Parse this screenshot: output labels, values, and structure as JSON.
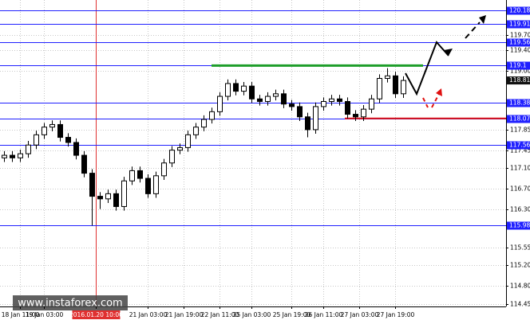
{
  "chart_data": {
    "type": "candlestick",
    "x": [
      0,
      1,
      2,
      3,
      4,
      5,
      6,
      7,
      8,
      9,
      10,
      11,
      12,
      13,
      14,
      15,
      16,
      17,
      18,
      19,
      20,
      21,
      22,
      23,
      24,
      25,
      26,
      27,
      28,
      29,
      30,
      31,
      32,
      33,
      34,
      35,
      36,
      37,
      38,
      39,
      40,
      41,
      42,
      43,
      44,
      45,
      46,
      47,
      48,
      49,
      50
    ],
    "open": [
      117.3,
      117.35,
      117.3,
      117.38,
      117.55,
      117.75,
      117.9,
      117.95,
      117.7,
      117.6,
      117.35,
      117.0,
      116.55,
      116.5,
      116.6,
      116.35,
      116.85,
      117.05,
      116.9,
      116.6,
      116.95,
      117.2,
      117.45,
      117.5,
      117.75,
      117.9,
      118.05,
      118.2,
      118.5,
      118.75,
      118.6,
      118.7,
      118.45,
      118.4,
      118.5,
      118.55,
      118.35,
      118.3,
      118.1,
      117.85,
      118.3,
      118.4,
      118.45,
      118.4,
      118.15,
      118.1,
      118.25,
      118.45,
      118.85,
      118.9,
      118.55
    ],
    "high": [
      117.43,
      117.43,
      117.46,
      117.63,
      117.83,
      117.98,
      118.03,
      118.03,
      117.78,
      117.68,
      117.43,
      117.08,
      116.63,
      116.68,
      116.68,
      116.93,
      117.13,
      117.13,
      116.98,
      117.03,
      117.28,
      117.53,
      117.58,
      117.83,
      117.98,
      118.13,
      118.28,
      118.58,
      118.83,
      118.83,
      118.78,
      118.78,
      118.53,
      118.58,
      118.63,
      118.63,
      118.43,
      118.38,
      118.18,
      118.38,
      118.48,
      118.53,
      118.53,
      118.48,
      118.23,
      118.33,
      118.53,
      118.93,
      119.05,
      118.98,
      118.89
    ],
    "low": [
      117.22,
      117.22,
      117.22,
      117.3,
      117.47,
      117.67,
      117.82,
      117.62,
      117.52,
      117.27,
      116.92,
      115.98,
      116.3,
      116.42,
      116.27,
      116.27,
      116.77,
      116.82,
      116.52,
      116.52,
      116.87,
      117.12,
      117.37,
      117.42,
      117.67,
      117.82,
      117.97,
      118.12,
      118.42,
      118.52,
      118.52,
      118.37,
      118.32,
      118.32,
      118.42,
      118.27,
      118.22,
      118.02,
      117.7,
      117.77,
      118.22,
      118.32,
      118.32,
      118.07,
      118.02,
      118.02,
      118.17,
      118.37,
      118.77,
      118.47,
      118.47
    ],
    "close": [
      117.35,
      117.3,
      117.38,
      117.55,
      117.75,
      117.9,
      117.95,
      117.7,
      117.6,
      117.35,
      117.0,
      116.55,
      116.5,
      116.6,
      116.35,
      116.85,
      117.05,
      116.9,
      116.6,
      116.95,
      117.2,
      117.45,
      117.5,
      117.75,
      117.9,
      118.05,
      118.2,
      118.5,
      118.75,
      118.6,
      118.7,
      118.45,
      118.4,
      118.5,
      118.55,
      118.35,
      118.3,
      118.1,
      117.85,
      118.3,
      118.4,
      118.45,
      118.4,
      118.15,
      118.1,
      118.25,
      118.45,
      118.85,
      118.9,
      118.55,
      118.81
    ],
    "xlim": [
      -0.5,
      62.9
    ],
    "ylim": [
      114.4,
      120.38
    ],
    "yticks": [
      114.45,
      {
        "value": 114.8,
        "label": "114.80"
      },
      {
        "value": 115.2,
        "label": "115.20"
      },
      115.55,
      {
        "value": 116.3,
        "label": "116.30"
      },
      {
        "value": 116.7,
        "label": "116.70"
      },
      {
        "value": 117.1,
        "label": "117.10"
      },
      117.45,
      117.85,
      {
        "value": 119.0,
        "label": "119.00"
      },
      {
        "value": 119.4,
        "label": "119.40"
      },
      {
        "value": 119.7,
        "label": "119.70"
      }
    ],
    "xticks": [
      {
        "value": 2,
        "label": "18 Jan 11:00"
      },
      {
        "value": 5,
        "label": "19 Jan 03:00"
      },
      {
        "value": 11.5,
        "label": "2016.01.20 10:00"
      },
      {
        "value": 18,
        "label": "21 Jan 03:00"
      },
      {
        "value": 22.5,
        "label": "21 Jan 19:00"
      },
      {
        "value": 27,
        "label": "22 Jan 11:00"
      },
      {
        "value": 31,
        "label": "25 Jan 03:00"
      },
      {
        "value": 36,
        "label": "25 Jan 19:00"
      },
      {
        "value": 40,
        "label": "26 Jan 11:00"
      },
      {
        "value": 44.5,
        "label": "27 Jan 03:00"
      },
      {
        "value": 49,
        "label": "27 Jan 19:00"
      }
    ],
    "marker_tick": 2,
    "levels": [
      120.18,
      119.91,
      119.56,
      119.1,
      118.38,
      118.07,
      117.56,
      115.98
    ],
    "level_color": "#2020ff",
    "last_price": 118.81,
    "resistance": 119.1,
    "resistance_color": "#1e9e2a",
    "support": 118.07,
    "support_color": "#e01010",
    "grid": true,
    "watermark": "www.instaforex.com"
  }
}
